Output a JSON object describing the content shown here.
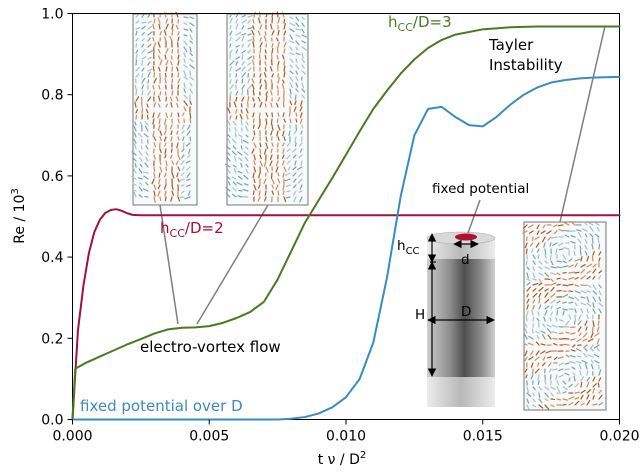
{
  "chart_data": {
    "type": "line",
    "xlabel": "t ν / D²",
    "ylabel": "Re / 10³",
    "xlim": [
      0,
      0.02
    ],
    "ylim": [
      0,
      1.0
    ],
    "xticks": [
      "0.000",
      "0.005",
      "0.010",
      "0.015",
      "0.020"
    ],
    "yticks": [
      "0.0",
      "0.2",
      "0.4",
      "0.6",
      "0.8",
      "1.0"
    ],
    "grid": false,
    "series": [
      {
        "name": "hCC/D=2",
        "color": "#a50f3c",
        "x": [
          0,
          0.0002,
          0.0004,
          0.0006,
          0.0008,
          0.001,
          0.0012,
          0.0014,
          0.0016,
          0.0018,
          0.002,
          0.0022,
          0.0025,
          0.003,
          0.004,
          0.006,
          0.01,
          0.015,
          0.02
        ],
        "y": [
          0.0,
          0.22,
          0.33,
          0.41,
          0.462,
          0.492,
          0.509,
          0.516,
          0.518,
          0.514,
          0.508,
          0.504,
          0.503,
          0.503,
          0.503,
          0.503,
          0.503,
          0.503,
          0.503
        ]
      },
      {
        "name": "hCC/D=3",
        "color": "#4a7a22",
        "x": [
          0,
          0.0001,
          0.0005,
          0.001,
          0.0015,
          0.002,
          0.0025,
          0.003,
          0.0035,
          0.004,
          0.0045,
          0.005,
          0.0055,
          0.006,
          0.0065,
          0.007,
          0.0075,
          0.008,
          0.0085,
          0.009,
          0.0095,
          0.01,
          0.0105,
          0.011,
          0.0115,
          0.012,
          0.0125,
          0.013,
          0.0135,
          0.014,
          0.015,
          0.016,
          0.017,
          0.018,
          0.019,
          0.02
        ],
        "y": [
          0.0,
          0.125,
          0.14,
          0.155,
          0.17,
          0.185,
          0.198,
          0.212,
          0.222,
          0.226,
          0.227,
          0.23,
          0.238,
          0.25,
          0.265,
          0.29,
          0.345,
          0.415,
          0.485,
          0.54,
          0.595,
          0.652,
          0.71,
          0.765,
          0.81,
          0.852,
          0.887,
          0.915,
          0.935,
          0.948,
          0.961,
          0.966,
          0.968,
          0.968,
          0.968,
          0.968
        ]
      },
      {
        "name": "fixed potential over D",
        "color": "#3a8cc0",
        "x": [
          0,
          0.002,
          0.004,
          0.006,
          0.007,
          0.0075,
          0.008,
          0.0085,
          0.009,
          0.0095,
          0.01,
          0.0105,
          0.011,
          0.0115,
          0.012,
          0.0125,
          0.013,
          0.0135,
          0.014,
          0.0145,
          0.015,
          0.0155,
          0.016,
          0.0165,
          0.017,
          0.0175,
          0.018,
          0.0185,
          0.019,
          0.0195,
          0.02
        ],
        "y": [
          0.0,
          0.0,
          0.0,
          0.0,
          0.0,
          0.0,
          0.002,
          0.006,
          0.015,
          0.03,
          0.055,
          0.1,
          0.19,
          0.35,
          0.55,
          0.7,
          0.765,
          0.77,
          0.745,
          0.725,
          0.722,
          0.745,
          0.775,
          0.8,
          0.818,
          0.83,
          0.836,
          0.84,
          0.842,
          0.843,
          0.844
        ]
      }
    ],
    "annotations": {
      "electro_vortex": "electro-vortex flow",
      "tayler_line1": "Tayler",
      "tayler_line2": "Instability",
      "fixed_potential": "fixed potential",
      "label_hcc": "hCC",
      "label_d_small": "d",
      "label_H": "H",
      "label_D": "D"
    }
  }
}
